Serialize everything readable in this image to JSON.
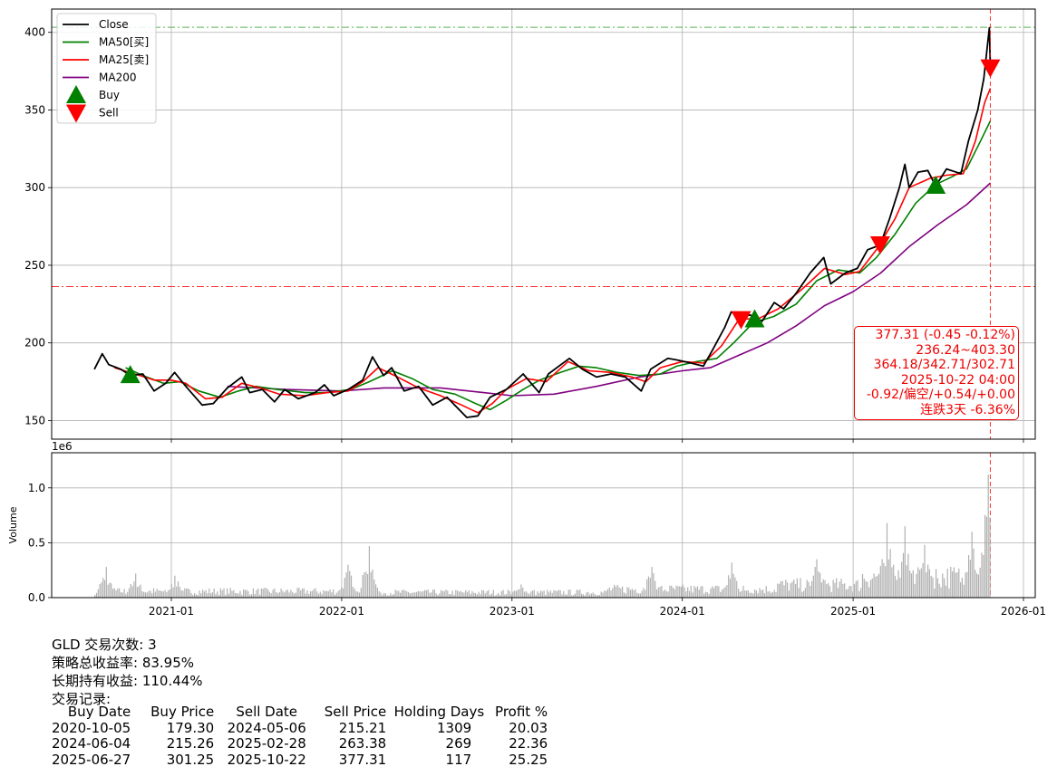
{
  "chart_data": [
    {
      "type": "line",
      "panel": "price",
      "ylim": [
        138,
        415
      ],
      "yticks": [
        150,
        200,
        250,
        300,
        350,
        400
      ],
      "grid": true,
      "legend_position": "top-left",
      "legend": [
        {
          "label": "Close",
          "color": "#000000",
          "kind": "line"
        },
        {
          "label": "MA50[买]",
          "color": "#008000",
          "kind": "line"
        },
        {
          "label": "MA25[卖]",
          "color": "#ff0000",
          "kind": "line"
        },
        {
          "label": "MA200",
          "color": "#800080",
          "kind": "line"
        },
        {
          "label": "Buy",
          "color": "#008000",
          "kind": "triangle-up"
        },
        {
          "label": "Sell",
          "color": "#ff0000",
          "kind": "triangle-down"
        }
      ],
      "hlines": [
        {
          "y": 403.3,
          "color": "#2ca02c",
          "style": "dashdot"
        },
        {
          "y": 236.24,
          "color": "#ff0000",
          "style": "dashdot"
        }
      ],
      "vline": {
        "x": "2025-10-22",
        "color": "#ff0000",
        "style": "dashed"
      },
      "series": {
        "close": [
          [
            "2020-07-20",
            183
          ],
          [
            "2020-08-06",
            193
          ],
          [
            "2020-08-20",
            186
          ],
          [
            "2020-09-15",
            183
          ],
          [
            "2020-10-05",
            179
          ],
          [
            "2020-11-01",
            180
          ],
          [
            "2020-11-25",
            169
          ],
          [
            "2020-12-20",
            174
          ],
          [
            "2021-01-08",
            181
          ],
          [
            "2021-02-01",
            172
          ],
          [
            "2021-03-08",
            160
          ],
          [
            "2021-04-01",
            161
          ],
          [
            "2021-05-01",
            171
          ],
          [
            "2021-06-01",
            178
          ],
          [
            "2021-06-18",
            168
          ],
          [
            "2021-07-15",
            170
          ],
          [
            "2021-08-10",
            162
          ],
          [
            "2021-09-01",
            170
          ],
          [
            "2021-09-30",
            164
          ],
          [
            "2021-11-05",
            168
          ],
          [
            "2021-11-25",
            173
          ],
          [
            "2021-12-15",
            166
          ],
          [
            "2022-01-15",
            170
          ],
          [
            "2022-02-15",
            176
          ],
          [
            "2022-03-08",
            191
          ],
          [
            "2022-04-01",
            179
          ],
          [
            "2022-04-18",
            184
          ],
          [
            "2022-05-15",
            169
          ],
          [
            "2022-06-15",
            172
          ],
          [
            "2022-07-15",
            160
          ],
          [
            "2022-08-15",
            165
          ],
          [
            "2022-09-26",
            152
          ],
          [
            "2022-10-20",
            153
          ],
          [
            "2022-11-15",
            165
          ],
          [
            "2022-12-20",
            170
          ],
          [
            "2023-01-25",
            180
          ],
          [
            "2023-02-28",
            168
          ],
          [
            "2023-03-20",
            180
          ],
          [
            "2023-05-04",
            190
          ],
          [
            "2023-06-01",
            183
          ],
          [
            "2023-07-01",
            178
          ],
          [
            "2023-08-01",
            180
          ],
          [
            "2023-09-01",
            178
          ],
          [
            "2023-10-05",
            169
          ],
          [
            "2023-10-25",
            183
          ],
          [
            "2023-12-01",
            190
          ],
          [
            "2023-12-20",
            189
          ],
          [
            "2024-01-20",
            187
          ],
          [
            "2024-02-15",
            185
          ],
          [
            "2024-03-05",
            195
          ],
          [
            "2024-04-01",
            210
          ],
          [
            "2024-04-15",
            220
          ],
          [
            "2024-05-06",
            216
          ],
          [
            "2024-05-25",
            218
          ],
          [
            "2024-06-20",
            214
          ],
          [
            "2024-07-16",
            226
          ],
          [
            "2024-08-05",
            222
          ],
          [
            "2024-09-01",
            232
          ],
          [
            "2024-10-01",
            245
          ],
          [
            "2024-10-30",
            255
          ],
          [
            "2024-11-14",
            238
          ],
          [
            "2024-12-15",
            245
          ],
          [
            "2025-01-10",
            248
          ],
          [
            "2025-02-01",
            260
          ],
          [
            "2025-02-28",
            263
          ],
          [
            "2025-03-20",
            280
          ],
          [
            "2025-04-10",
            300
          ],
          [
            "2025-04-22",
            315
          ],
          [
            "2025-05-01",
            300
          ],
          [
            "2025-05-20",
            310
          ],
          [
            "2025-06-10",
            311
          ],
          [
            "2025-06-27",
            301
          ],
          [
            "2025-07-20",
            312
          ],
          [
            "2025-08-20",
            309
          ],
          [
            "2025-09-05",
            330
          ],
          [
            "2025-09-25",
            350
          ],
          [
            "2025-10-08",
            370
          ],
          [
            "2025-10-20",
            403
          ],
          [
            "2025-10-22",
            377
          ]
        ],
        "ma50": [
          [
            "2020-09-25",
            184
          ],
          [
            "2020-11-01",
            179
          ],
          [
            "2020-12-15",
            174
          ],
          [
            "2021-01-20",
            175
          ],
          [
            "2021-03-01",
            169
          ],
          [
            "2021-04-15",
            165
          ],
          [
            "2021-05-25",
            169
          ],
          [
            "2021-07-01",
            172
          ],
          [
            "2021-08-15",
            170
          ],
          [
            "2021-10-15",
            168
          ],
          [
            "2021-12-01",
            168
          ],
          [
            "2022-01-20",
            170
          ],
          [
            "2022-03-01",
            175
          ],
          [
            "2022-04-20",
            182
          ],
          [
            "2022-06-01",
            177
          ],
          [
            "2022-07-15",
            170
          ],
          [
            "2022-09-01",
            167
          ],
          [
            "2022-10-15",
            161
          ],
          [
            "2022-11-15",
            157
          ],
          [
            "2022-12-20",
            163
          ],
          [
            "2023-01-25",
            170
          ],
          [
            "2023-03-01",
            176
          ],
          [
            "2023-04-15",
            181
          ],
          [
            "2023-05-25",
            185
          ],
          [
            "2023-07-01",
            184
          ],
          [
            "2023-08-15",
            181
          ],
          [
            "2023-10-01",
            179
          ],
          [
            "2023-11-15",
            180
          ],
          [
            "2023-12-20",
            185
          ],
          [
            "2024-02-01",
            188
          ],
          [
            "2024-03-15",
            190
          ],
          [
            "2024-04-20",
            200
          ],
          [
            "2024-06-01",
            213
          ],
          [
            "2024-07-15",
            217
          ],
          [
            "2024-09-01",
            225
          ],
          [
            "2024-10-15",
            240
          ],
          [
            "2024-11-30",
            247
          ],
          [
            "2025-01-15",
            245
          ],
          [
            "2025-02-20",
            255
          ],
          [
            "2025-04-01",
            270
          ],
          [
            "2025-05-15",
            290
          ],
          [
            "2025-06-27",
            302
          ],
          [
            "2025-08-01",
            307
          ],
          [
            "2025-09-01",
            312
          ],
          [
            "2025-10-01",
            330
          ],
          [
            "2025-10-22",
            343
          ]
        ],
        "ma25": [
          [
            "2020-09-01",
            184
          ],
          [
            "2020-10-15",
            180
          ],
          [
            "2020-11-25",
            176
          ],
          [
            "2021-01-01",
            176
          ],
          [
            "2021-02-01",
            174
          ],
          [
            "2021-03-15",
            164
          ],
          [
            "2021-04-20",
            165
          ],
          [
            "2021-06-01",
            174
          ],
          [
            "2021-07-10",
            171
          ],
          [
            "2021-08-20",
            167
          ],
          [
            "2021-10-15",
            166
          ],
          [
            "2021-12-01",
            168
          ],
          [
            "2022-01-15",
            169
          ],
          [
            "2022-02-15",
            175
          ],
          [
            "2022-03-20",
            184
          ],
          [
            "2022-05-01",
            178
          ],
          [
            "2022-06-15",
            171
          ],
          [
            "2022-08-01",
            166
          ],
          [
            "2022-09-15",
            160
          ],
          [
            "2022-10-20",
            155
          ],
          [
            "2022-11-20",
            161
          ],
          [
            "2022-12-20",
            170
          ],
          [
            "2023-02-01",
            177
          ],
          [
            "2023-03-15",
            175
          ],
          [
            "2023-05-01",
            188
          ],
          [
            "2023-06-15",
            182
          ],
          [
            "2023-08-01",
            181
          ],
          [
            "2023-09-15",
            178
          ],
          [
            "2023-10-15",
            175
          ],
          [
            "2023-11-15",
            184
          ],
          [
            "2024-01-01",
            188
          ],
          [
            "2024-02-15",
            187
          ],
          [
            "2024-03-25",
            198
          ],
          [
            "2024-05-01",
            215
          ],
          [
            "2024-06-15",
            216
          ],
          [
            "2024-07-25",
            222
          ],
          [
            "2024-09-15",
            235
          ],
          [
            "2024-11-01",
            248
          ],
          [
            "2024-12-15",
            244
          ],
          [
            "2025-01-15",
            246
          ],
          [
            "2025-02-20",
            260
          ],
          [
            "2025-04-01",
            280
          ],
          [
            "2025-05-01",
            300
          ],
          [
            "2025-06-15",
            306
          ],
          [
            "2025-07-20",
            308
          ],
          [
            "2025-08-25",
            309
          ],
          [
            "2025-09-20",
            330
          ],
          [
            "2025-10-10",
            355
          ],
          [
            "2025-10-22",
            364
          ]
        ],
        "ma200": [
          [
            "2021-05-01",
            172
          ],
          [
            "2021-09-01",
            170
          ],
          [
            "2022-01-01",
            169
          ],
          [
            "2022-04-01",
            171
          ],
          [
            "2022-08-01",
            171
          ],
          [
            "2022-11-01",
            168
          ],
          [
            "2023-01-01",
            166
          ],
          [
            "2023-04-01",
            167
          ],
          [
            "2023-07-01",
            172
          ],
          [
            "2023-10-01",
            178
          ],
          [
            "2024-01-01",
            182
          ],
          [
            "2024-03-01",
            184
          ],
          [
            "2024-05-01",
            192
          ],
          [
            "2024-07-01",
            200
          ],
          [
            "2024-09-01",
            211
          ],
          [
            "2024-11-01",
            224
          ],
          [
            "2025-01-01",
            233
          ],
          [
            "2025-03-01",
            245
          ],
          [
            "2025-05-01",
            262
          ],
          [
            "2025-07-01",
            276
          ],
          [
            "2025-09-01",
            289
          ],
          [
            "2025-10-22",
            303
          ]
        ]
      },
      "markers": {
        "buy": [
          [
            "2020-10-05",
            179.3
          ],
          [
            "2024-06-04",
            215.26
          ],
          [
            "2025-06-27",
            301.25
          ]
        ],
        "sell": [
          [
            "2024-05-06",
            215.21
          ],
          [
            "2025-02-28",
            263.38
          ],
          [
            "2025-10-22",
            377.31
          ]
        ]
      }
    },
    {
      "type": "bar",
      "panel": "volume",
      "ylabel": "Volume",
      "offset_label": "1e6",
      "ylim": [
        0,
        1.32
      ],
      "yticks": [
        "0.0",
        "0.5",
        "1.0"
      ],
      "grid": true,
      "bar_color": "#b0b0b0",
      "xticks": [
        "2021-01",
        "2022-01",
        "2023-01",
        "2024-01",
        "2025-01",
        "2026-01"
      ],
      "volume_peaks_1e6": [
        [
          "2020-08-12",
          0.28
        ],
        [
          "2020-10-15",
          0.22
        ],
        [
          "2021-01-08",
          0.2
        ],
        [
          "2022-01-15",
          0.3
        ],
        [
          "2022-02-28",
          0.47
        ],
        [
          "2023-01-20",
          0.12
        ],
        [
          "2023-10-25",
          0.28
        ],
        [
          "2024-04-15",
          0.32
        ],
        [
          "2024-10-15",
          0.35
        ],
        [
          "2025-03-15",
          0.68
        ],
        [
          "2025-04-22",
          0.65
        ],
        [
          "2025-06-01",
          0.48
        ],
        [
          "2025-09-10",
          0.6
        ],
        [
          "2025-10-17",
          1.12
        ]
      ]
    }
  ],
  "info_box": {
    "line1": "377.31 (-0.45 -0.12%)",
    "line2": "236.24~403.30",
    "line3": "364.18/342.71/302.71",
    "line4": "2025-10-22 04:00",
    "line5": "-0.92/偏空/+0.54/+0.00",
    "line6": "连跌3天 -6.36%"
  },
  "summary": {
    "trades": "GLD 交易次数: 3",
    "strategy_return": "策略总收益率: 83.95%",
    "hold_return": "长期持有收益: 110.44%",
    "records_title": "交易记录:"
  },
  "trades_table": {
    "headers": [
      "Buy Date",
      "Buy Price",
      "Sell Date",
      "Sell Price",
      "Holding Days",
      "Profit %"
    ],
    "rows": [
      [
        "2020-10-05",
        "179.30",
        "2024-05-06",
        "215.21",
        "1309",
        "20.03"
      ],
      [
        "2024-06-04",
        "215.26",
        "2025-02-28",
        "263.38",
        "269",
        "22.36"
      ],
      [
        "2025-06-27",
        "301.25",
        "2025-10-22",
        "377.31",
        "117",
        "25.25"
      ]
    ]
  }
}
